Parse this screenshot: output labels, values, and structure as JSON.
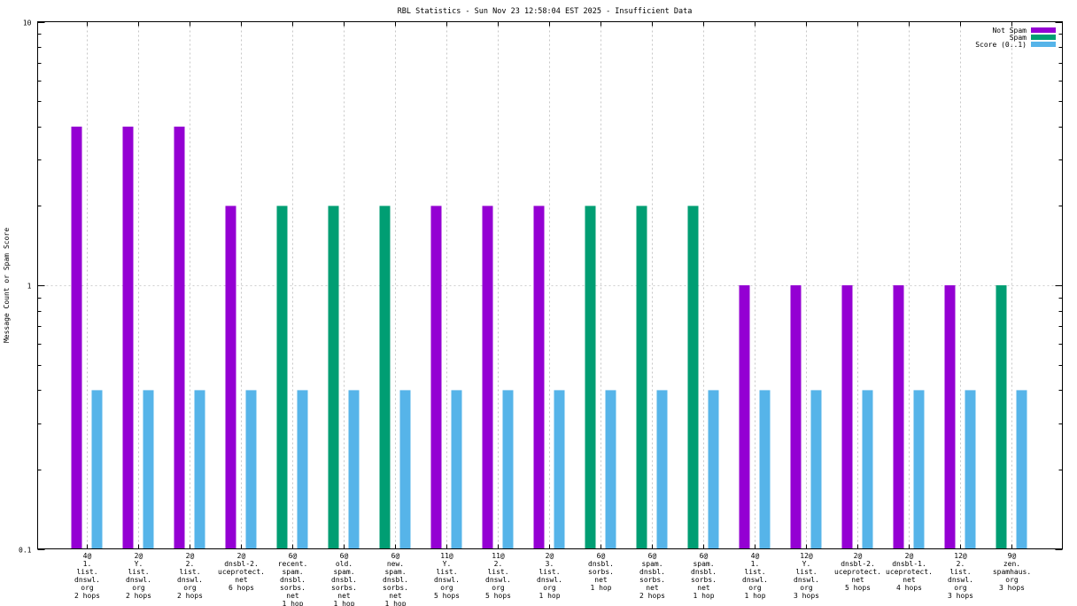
{
  "chart_data": {
    "type": "bar",
    "title": "RBL Statistics - Sun Nov 23 12:58:04 EST 2025 - Insufficient Data",
    "ylabel": "Message Count or Spam Score",
    "xlabel": "",
    "yscale": "log",
    "ylim": [
      0.1,
      10
    ],
    "yticks": [
      "0.1",
      "1",
      "10"
    ],
    "grid": true,
    "legend_position": "top-right",
    "categories": [
      [
        "4@",
        "1.",
        "list.",
        "dnswl.",
        "org",
        "2 hops"
      ],
      [
        "2@",
        "Y.",
        "list.",
        "dnswl.",
        "org",
        "2 hops"
      ],
      [
        "2@",
        "2.",
        "list.",
        "dnswl.",
        "org",
        "2 hops"
      ],
      [
        "2@",
        "dnsbl-2.",
        "uceprotect.",
        "net",
        "6 hops"
      ],
      [
        "6@",
        "recent.",
        "spam.",
        "dnsbl.",
        "sorbs.",
        "net",
        "1 hop"
      ],
      [
        "6@",
        "old.",
        "spam.",
        "dnsbl.",
        "sorbs.",
        "net",
        "1 hop"
      ],
      [
        "6@",
        "new.",
        "spam.",
        "dnsbl.",
        "sorbs.",
        "net",
        "1 hop"
      ],
      [
        "11@",
        "Y.",
        "list.",
        "dnswl.",
        "org",
        "5 hops"
      ],
      [
        "11@",
        "2.",
        "list.",
        "dnswl.",
        "org",
        "5 hops"
      ],
      [
        "2@",
        "3.",
        "list.",
        "dnswl.",
        "org",
        "1 hop"
      ],
      [
        "6@",
        "dnsbl.",
        "sorbs.",
        "net",
        "1 hop"
      ],
      [
        "6@",
        "spam.",
        "dnsbl.",
        "sorbs.",
        "net",
        "2 hops"
      ],
      [
        "6@",
        "spam.",
        "dnsbl.",
        "sorbs.",
        "net",
        "1 hop"
      ],
      [
        "4@",
        "1.",
        "list.",
        "dnswl.",
        "org",
        "1 hop"
      ],
      [
        "12@",
        "Y.",
        "list.",
        "dnswl.",
        "org",
        "3 hops"
      ],
      [
        "2@",
        "dnsbl-2.",
        "uceprotect.",
        "net",
        "5 hops"
      ],
      [
        "2@",
        "dnsbl-1.",
        "uceprotect.",
        "net",
        "4 hops"
      ],
      [
        "12@",
        "2.",
        "list.",
        "dnswl.",
        "org",
        "3 hops"
      ],
      [
        "9@",
        "zen.",
        "spamhaus.",
        "org",
        "3 hops"
      ]
    ],
    "series": [
      {
        "name": "Not Spam",
        "color": "#9400d3",
        "values": [
          4,
          4,
          4,
          2,
          0,
          0,
          0,
          2,
          2,
          2,
          0,
          0,
          0,
          1,
          1,
          1,
          1,
          1,
          0
        ]
      },
      {
        "name": "Spam",
        "color": "#009e73",
        "values": [
          0,
          0,
          0,
          0,
          2,
          2,
          2,
          0,
          0,
          0,
          2,
          2,
          2,
          0,
          0,
          0,
          0,
          0,
          1
        ]
      },
      {
        "name": "Score (0..1)",
        "color": "#56b4e9",
        "values": [
          0.4,
          0.4,
          0.4,
          0.4,
          0.4,
          0.4,
          0.4,
          0.4,
          0.4,
          0.4,
          0.4,
          0.4,
          0.4,
          0.4,
          0.4,
          0.4,
          0.4,
          0.4,
          0.4
        ]
      }
    ]
  }
}
